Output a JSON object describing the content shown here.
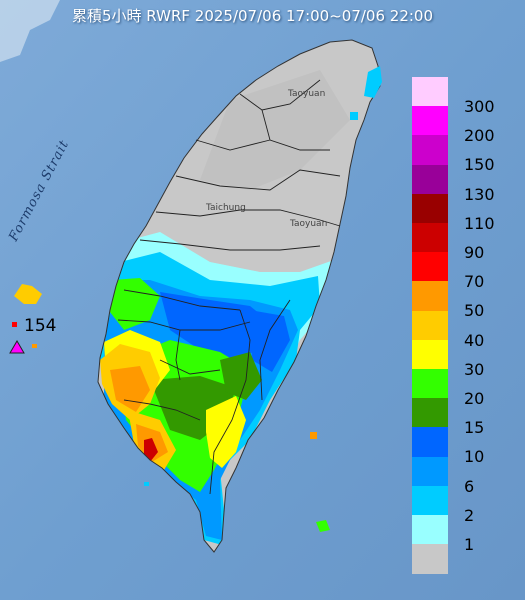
{
  "title": "累積5小時 RWRF 2025/07/06 17:00~07/06 22:00",
  "map": {
    "strait_label": "Formosa Strait",
    "place_labels": [
      "Taoyuan",
      "Taichung",
      "Taoyuan"
    ],
    "max_marker_value": "154",
    "max_marker_icon": "triangle-marker-icon"
  },
  "legend": {
    "items": [
      {
        "label": "300",
        "color": "#ffccff"
      },
      {
        "label": "200",
        "color": "#ff00ff"
      },
      {
        "label": "150",
        "color": "#cc00cc"
      },
      {
        "label": "130",
        "color": "#990099"
      },
      {
        "label": "110",
        "color": "#990000"
      },
      {
        "label": "90",
        "color": "#cc0000"
      },
      {
        "label": "70",
        "color": "#ff0000"
      },
      {
        "label": "50",
        "color": "#ff9900"
      },
      {
        "label": "40",
        "color": "#ffcc00"
      },
      {
        "label": "30",
        "color": "#ffff00"
      },
      {
        "label": "20",
        "color": "#33ff00"
      },
      {
        "label": "15",
        "color": "#339900"
      },
      {
        "label": "10",
        "color": "#0066ff"
      },
      {
        "label": "6",
        "color": "#0099ff"
      },
      {
        "label": "2",
        "color": "#00ccff"
      },
      {
        "label": "1",
        "color": "#99ffff"
      },
      {
        "label": "",
        "color": "#c8c8c8"
      }
    ]
  },
  "colors": {
    "sea": "#6f9fd0",
    "land_gray": "#c8c8c8",
    "boundary": "#333333"
  }
}
